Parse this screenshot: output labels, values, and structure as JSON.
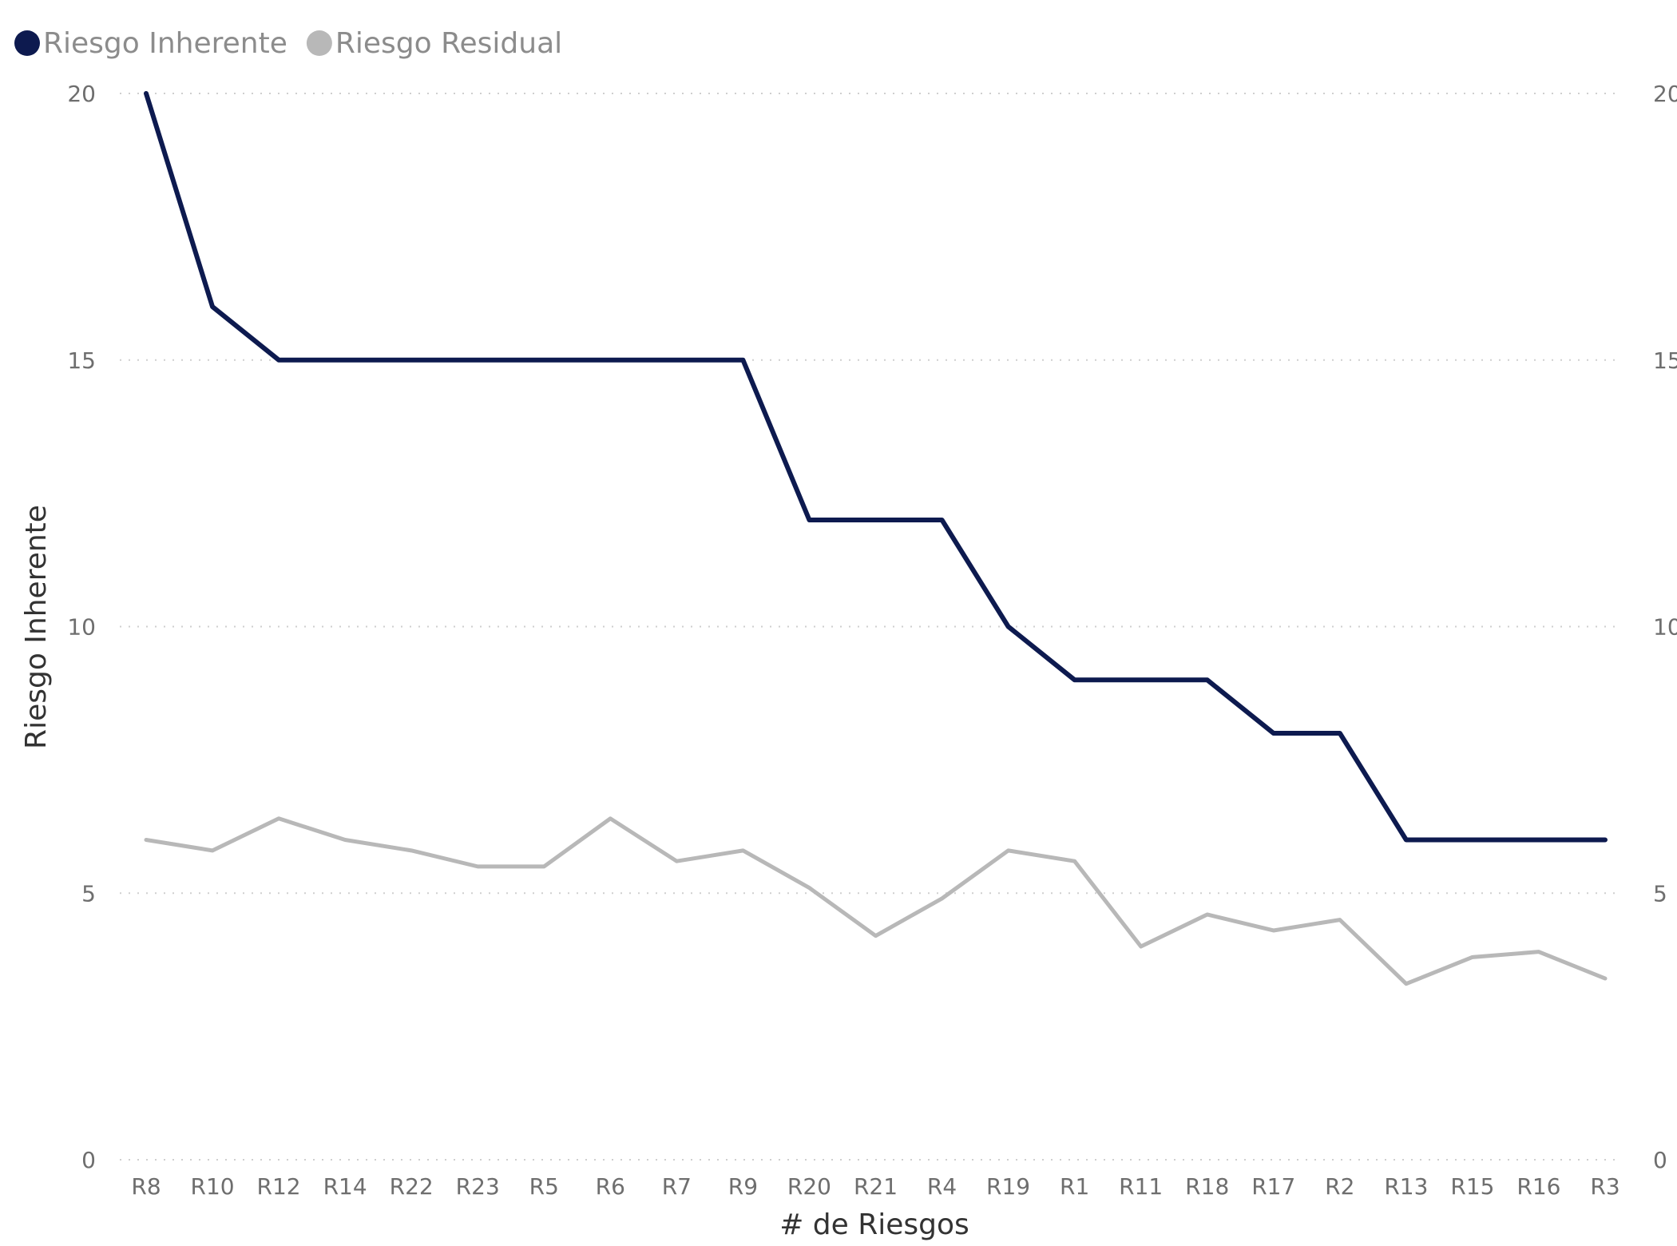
{
  "chart_data": {
    "type": "line",
    "legend_position": "top-left",
    "grid": true,
    "grid_style": "dotted",
    "xlabel": "# de Riesgos",
    "ylabel": "Riesgo Inherente",
    "ylim": [
      0,
      20
    ],
    "y_ticks": [
      0,
      5,
      10,
      15,
      20
    ],
    "y2_ticks": [
      "0",
      "5",
      "10",
      "15",
      "20"
    ],
    "categories": [
      "R8",
      "R10",
      "R12",
      "R14",
      "R22",
      "R23",
      "R5",
      "R6",
      "R7",
      "R9",
      "R20",
      "R21",
      "R4",
      "R19",
      "R1",
      "R11",
      "R18",
      "R17",
      "R2",
      "R13",
      "R15",
      "R16",
      "R3"
    ],
    "series": [
      {
        "name": "Riesgo Inherente",
        "color": "#0d1a4f",
        "values": [
          20,
          16,
          15,
          15,
          15,
          15,
          15,
          15,
          15,
          15,
          12,
          12,
          12,
          10,
          9,
          9,
          9,
          8,
          8,
          6,
          6,
          6,
          6
        ]
      },
      {
        "name": "Riesgo Residual",
        "color": "#b8b8b8",
        "values": [
          6.0,
          5.8,
          6.4,
          6.0,
          5.8,
          5.5,
          5.5,
          6.4,
          5.6,
          5.8,
          5.1,
          4.2,
          4.9,
          5.8,
          5.6,
          4.0,
          4.6,
          4.3,
          4.5,
          3.3,
          3.8,
          3.9,
          3.4
        ]
      }
    ]
  }
}
